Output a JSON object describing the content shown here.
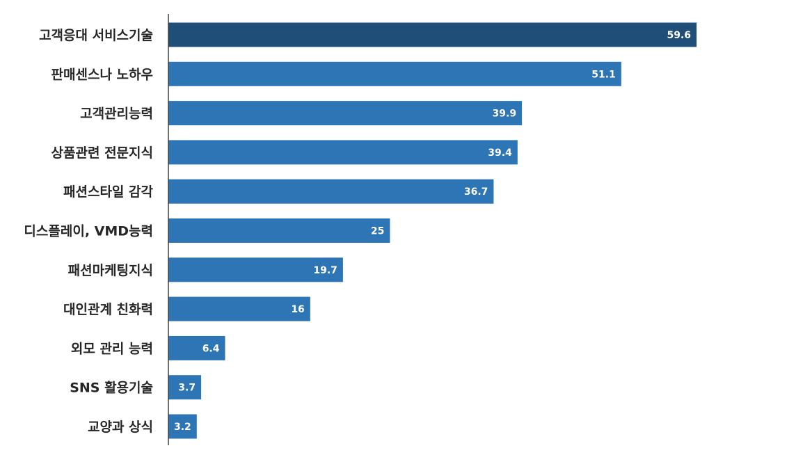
{
  "chart_data": {
    "type": "bar",
    "orientation": "horizontal",
    "categories": [
      "고객응대 서비스기술",
      "판매센스나 노하우",
      "고객관리능력",
      "상품관련 전문지식",
      "패션스타일 감각",
      "디스플레이, VMD능력",
      "패션마케팅지식",
      "대인관계 친화력",
      "외모 관리 능력",
      "SNS 활용기술",
      "교양과 상식"
    ],
    "values": [
      59.6,
      51.1,
      39.9,
      39.4,
      36.7,
      25,
      19.7,
      16,
      6.4,
      3.7,
      3.2
    ],
    "value_labels": [
      "59.6",
      "51.1",
      "39.9",
      "39.4",
      "36.7",
      "25",
      "19.7",
      "16",
      "6.4",
      "3.7",
      "3.2"
    ],
    "title": "",
    "xlabel": "",
    "ylabel": "",
    "xlim": [
      0,
      64
    ],
    "grid": false,
    "legend": "none",
    "colors": {
      "highlight": "#1F4E79",
      "bar": "#2E75B6",
      "axis": "#404040",
      "label_text": "#262626",
      "value_text": "#FFFFFF"
    },
    "highlight_index": 0
  }
}
